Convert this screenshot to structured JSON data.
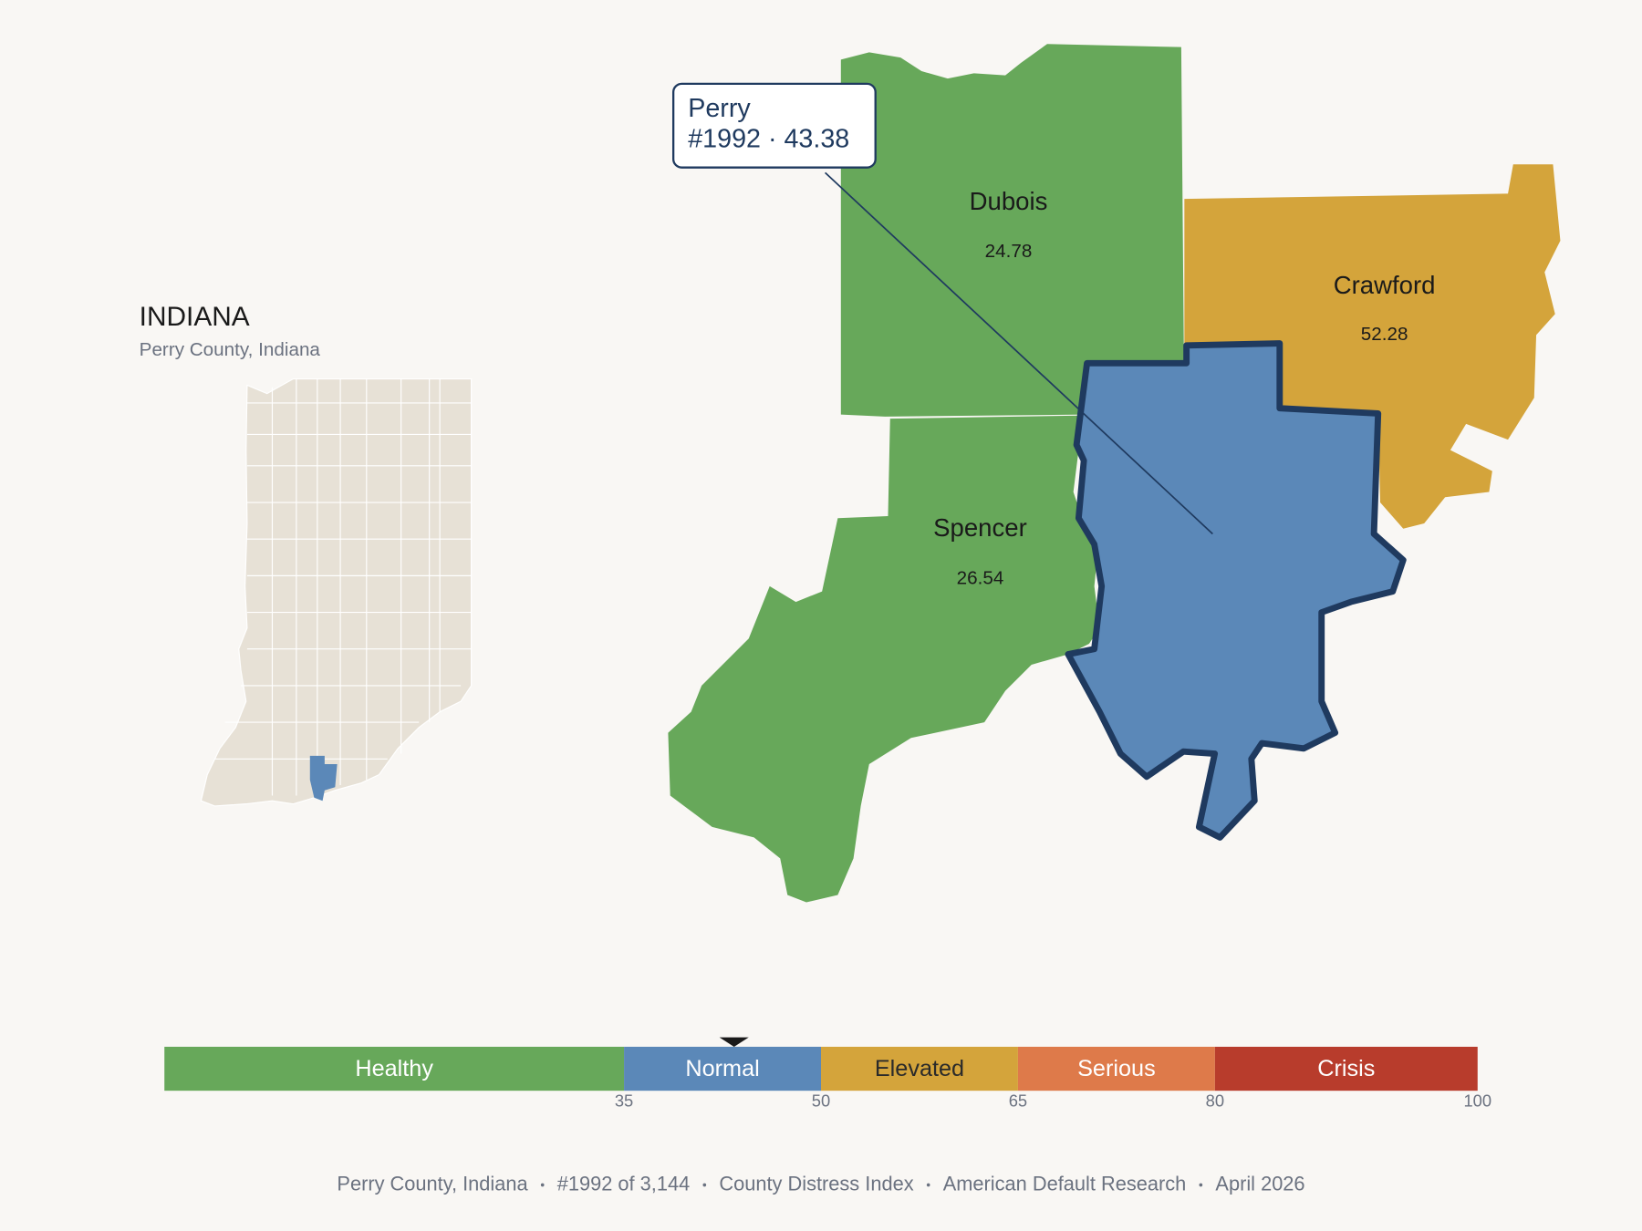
{
  "inset": {
    "title": "INDIANA",
    "subtitle": "Perry County, Indiana"
  },
  "counties": [
    {
      "name": "Dubois",
      "value": 24.78
    },
    {
      "name": "Spencer",
      "value": 26.54
    },
    {
      "name": "Crawford",
      "value": 52.28
    },
    {
      "name": "Perry",
      "value": 43.38,
      "selected": true
    }
  ],
  "tooltip": {
    "title": "Perry",
    "detail": "#1992 · 43.38"
  },
  "scale": {
    "xlim": [
      0,
      100
    ],
    "xticks": [
      35,
      50,
      65,
      80,
      100
    ],
    "bands": [
      {
        "name": "Healthy",
        "color": "#67a85a",
        "text_color": "#ffffff"
      },
      {
        "name": "Normal",
        "color": "#5b88b8",
        "text_color": "#ffffff"
      },
      {
        "name": "Elevated",
        "color": "#d4a43b",
        "text_color": "#2a2a2a"
      },
      {
        "name": "Serious",
        "color": "#de7a4a",
        "text_color": "#ffffff"
      },
      {
        "name": "Crisis",
        "color": "#b83c2c",
        "text_color": "#ffffff"
      }
    ]
  },
  "footer": [
    "Perry County, Indiana",
    "#1992 of 3,144",
    "County Distress Index",
    "American Default Research",
    "April 2026"
  ]
}
